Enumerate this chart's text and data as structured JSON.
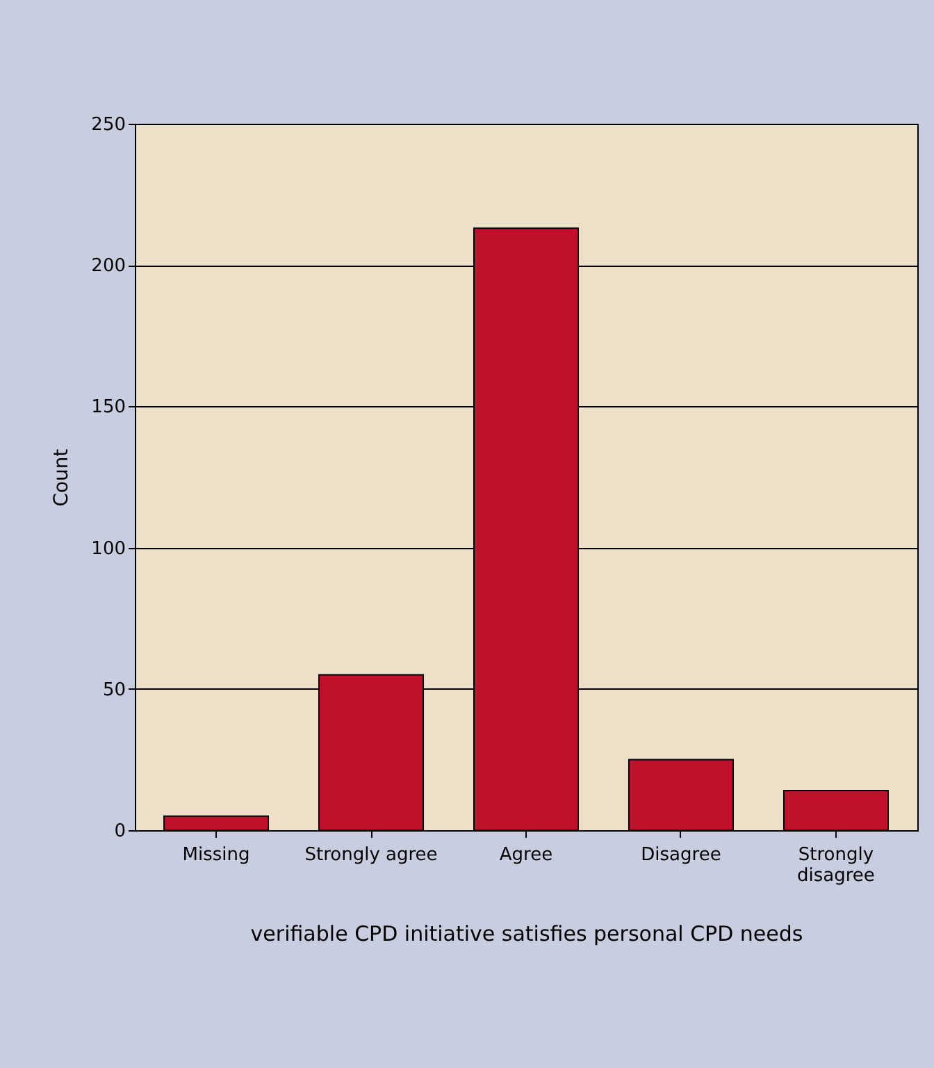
{
  "chart_data": {
    "type": "bar",
    "xlabel": "verifiable CPD initiative satisfies personal CPD needs",
    "ylabel": "Count",
    "categories": [
      "Missing",
      "Strongly agree",
      "Agree",
      "Disagree",
      "Strongly disagree"
    ],
    "values": [
      5,
      55,
      213,
      25,
      14
    ],
    "color": "#c0102c",
    "ylim": [
      0,
      250
    ],
    "yticks": [
      0,
      50,
      100,
      150,
      200,
      250
    ],
    "grid": "y"
  }
}
